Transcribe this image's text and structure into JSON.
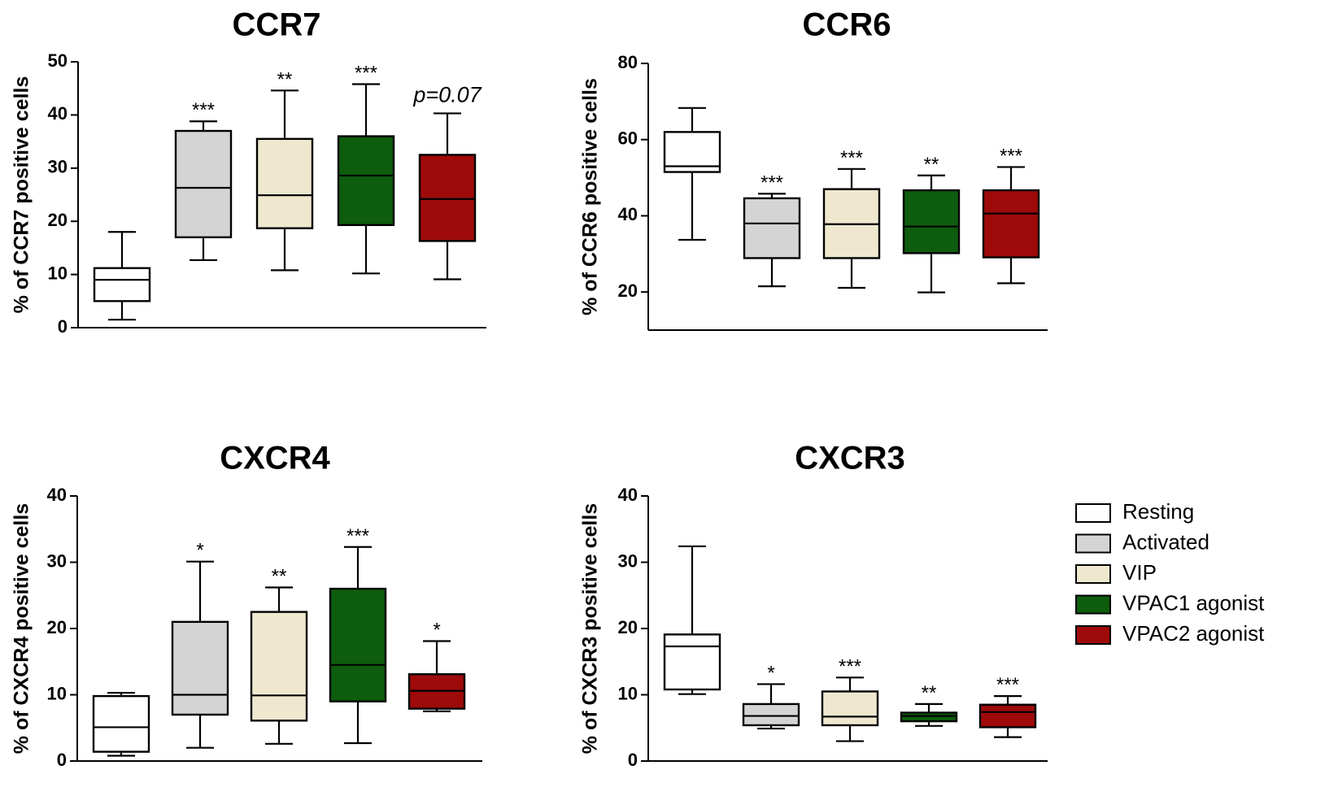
{
  "legend": [
    {
      "label": "Resting",
      "color": "#ffffff"
    },
    {
      "label": "Activated",
      "color": "#d4d4d4"
    },
    {
      "label": "VIP",
      "color": "#efe8cf"
    },
    {
      "label": "VPAC1 agonist",
      "color": "#0e5c0e"
    },
    {
      "label": "VPAC2 agonist",
      "color": "#9e0a0a"
    }
  ],
  "chart_data": [
    {
      "type": "box",
      "title": "CCR7",
      "ylabel": "% of CCR7 positive cells",
      "ylim": [
        0,
        50
      ],
      "yticks": [
        0,
        10,
        20,
        30,
        40,
        50
      ],
      "categories": [
        "Resting",
        "Activated",
        "VIP",
        "VPAC1 agonist",
        "VPAC2 agonist"
      ],
      "boxes": [
        {
          "min": 1.5,
          "q1": 5,
          "median": 9,
          "q3": 11.2,
          "max": 18
        },
        {
          "min": 12.7,
          "q1": 17,
          "median": 26.3,
          "q3": 37,
          "max": 38.8
        },
        {
          "min": 10.8,
          "q1": 18.7,
          "median": 24.9,
          "q3": 35.5,
          "max": 44.6
        },
        {
          "min": 10.2,
          "q1": 19.3,
          "median": 28.6,
          "q3": 36,
          "max": 45.8
        },
        {
          "min": 9.1,
          "q1": 16.3,
          "median": 24.2,
          "q3": 32.5,
          "max": 40.3
        }
      ],
      "annotations": [
        "",
        "***",
        "**",
        "***",
        "p=0.07"
      ]
    },
    {
      "type": "box",
      "title": "CCR6",
      "ylabel": "% of CCR6 positive cells",
      "ylim": [
        10,
        80
      ],
      "yticks": [
        20,
        40,
        60,
        80
      ],
      "categories": [
        "Resting",
        "Activated",
        "VIP",
        "VPAC1 agonist",
        "VPAC2 agonist"
      ],
      "boxes": [
        {
          "min": 33.7,
          "q1": 51.5,
          "median": 53,
          "q3": 62,
          "max": 68.3
        },
        {
          "min": 21.5,
          "q1": 28.9,
          "median": 38,
          "q3": 44.6,
          "max": 45.8
        },
        {
          "min": 21.1,
          "q1": 28.9,
          "median": 37.8,
          "q3": 47,
          "max": 52.3
        },
        {
          "min": 19.9,
          "q1": 30.2,
          "median": 37.2,
          "q3": 46.7,
          "max": 50.6
        },
        {
          "min": 22.3,
          "q1": 29.1,
          "median": 40.6,
          "q3": 46.7,
          "max": 52.8
        }
      ],
      "annotations": [
        "",
        "***",
        "***",
        "**",
        "***"
      ]
    },
    {
      "type": "box",
      "title": "CXCR4",
      "ylabel": "% of CXCR4 positive cells",
      "ylim": [
        0,
        40
      ],
      "yticks": [
        0,
        10,
        20,
        30,
        40
      ],
      "categories": [
        "Resting",
        "Activated",
        "VIP",
        "VPAC1 agonist",
        "VPAC2 agonist"
      ],
      "boxes": [
        {
          "min": 0.8,
          "q1": 1.4,
          "median": 5.1,
          "q3": 9.8,
          "max": 10.3
        },
        {
          "min": 2,
          "q1": 7,
          "median": 10,
          "q3": 21,
          "max": 30.1
        },
        {
          "min": 2.6,
          "q1": 6.1,
          "median": 9.9,
          "q3": 22.5,
          "max": 26.2
        },
        {
          "min": 2.7,
          "q1": 9,
          "median": 14.5,
          "q3": 26,
          "max": 32.3
        },
        {
          "min": 7.5,
          "q1": 7.9,
          "median": 10.6,
          "q3": 13.1,
          "max": 18.1
        }
      ],
      "annotations": [
        "",
        "*",
        "**",
        "***",
        "*"
      ]
    },
    {
      "type": "box",
      "title": "CXCR3",
      "ylabel": "% of CXCR3 positive cells",
      "ylim": [
        0,
        40
      ],
      "yticks": [
        0,
        10,
        20,
        30,
        40
      ],
      "categories": [
        "Resting",
        "Activated",
        "VIP",
        "VPAC1 agonist",
        "VPAC2 agonist"
      ],
      "boxes": [
        {
          "min": 10.1,
          "q1": 10.8,
          "median": 17.3,
          "q3": 19.1,
          "max": 32.4
        },
        {
          "min": 4.9,
          "q1": 5.4,
          "median": 6.8,
          "q3": 8.6,
          "max": 11.6
        },
        {
          "min": 3,
          "q1": 5.4,
          "median": 6.7,
          "q3": 10.5,
          "max": 12.6
        },
        {
          "min": 5.3,
          "q1": 6,
          "median": 6.8,
          "q3": 7.3,
          "max": 8.6
        },
        {
          "min": 3.6,
          "q1": 5.1,
          "median": 7.4,
          "q3": 8.5,
          "max": 9.8
        }
      ],
      "annotations": [
        "",
        "*",
        "***",
        "**",
        "***"
      ]
    }
  ]
}
